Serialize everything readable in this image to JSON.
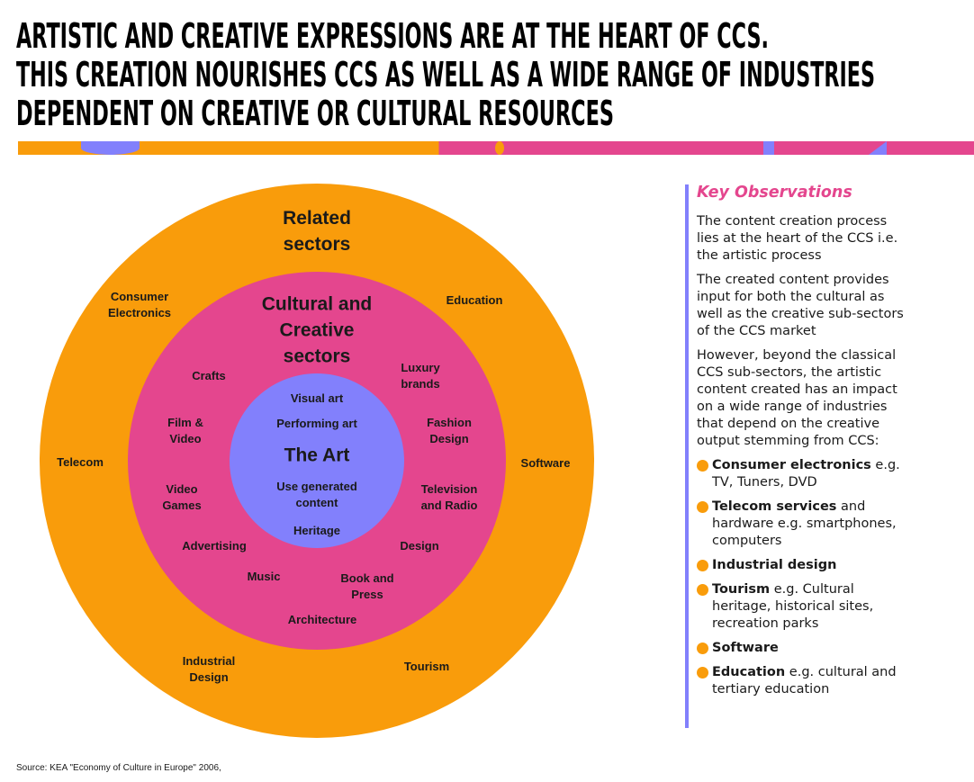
{
  "title": [
    "ARTISTIC AND CREATIVE EXPRESSIONS ARE AT THE HEART OF CCS.",
    "THIS CREATION NOURISHES CCS AS WELL AS A WIDE RANGE OF INDUSTRIES",
    "DEPENDENT ON CREATIVE OR CULTURAL RESOURCES"
  ],
  "colors": {
    "orange": "#f99c0b",
    "pink": "#e4468e",
    "purple": "#8280fc"
  },
  "diagram": {
    "outer": {
      "title": "Related sectors",
      "items": [
        "Consumer Electronics",
        "Education",
        "Telecom",
        "Software",
        "Industrial Design",
        "Tourism"
      ]
    },
    "middle": {
      "title": "Cultural and Creative sectors",
      "items": [
        "Crafts",
        "Luxury brands",
        "Film & Video",
        "Fashion Design",
        "Video Games",
        "Television and Radio",
        "Advertising",
        "Design",
        "Music",
        "Book and Press",
        "Architecture"
      ]
    },
    "inner": {
      "title": "The Art",
      "items": [
        "Visual art",
        "Performing art",
        "Use generated content",
        "Heritage"
      ]
    }
  },
  "side": {
    "heading": "Key Observations",
    "paragraphs": [
      "The content creation process lies at the heart of the CCS i.e. the artistic process",
      "The created content provides input for both the cultural as well as the creative sub-sectors of the CCS market",
      "However, beyond the classical CCS sub-sectors, the artistic content created has an impact on a wide range of industries that depend on the creative output stemming from CCS:"
    ],
    "bullets": [
      {
        "b": "Consumer electronics",
        "t": " e.g. TV, Tuners, DVD"
      },
      {
        "b": "Telecom services",
        "t": " and hardware e.g. smartphones, computers"
      },
      {
        "b": "Industrial design",
        "t": ""
      },
      {
        "b": "Tourism",
        "t": " e.g. Cultural heritage, historical sites, recreation parks"
      },
      {
        "b": "Software",
        "t": ""
      },
      {
        "b": "Education",
        "t": " e.g. cultural and tertiary education"
      }
    ]
  },
  "source": "Source: KEA \"Economy of Culture in Europe\" 2006,"
}
